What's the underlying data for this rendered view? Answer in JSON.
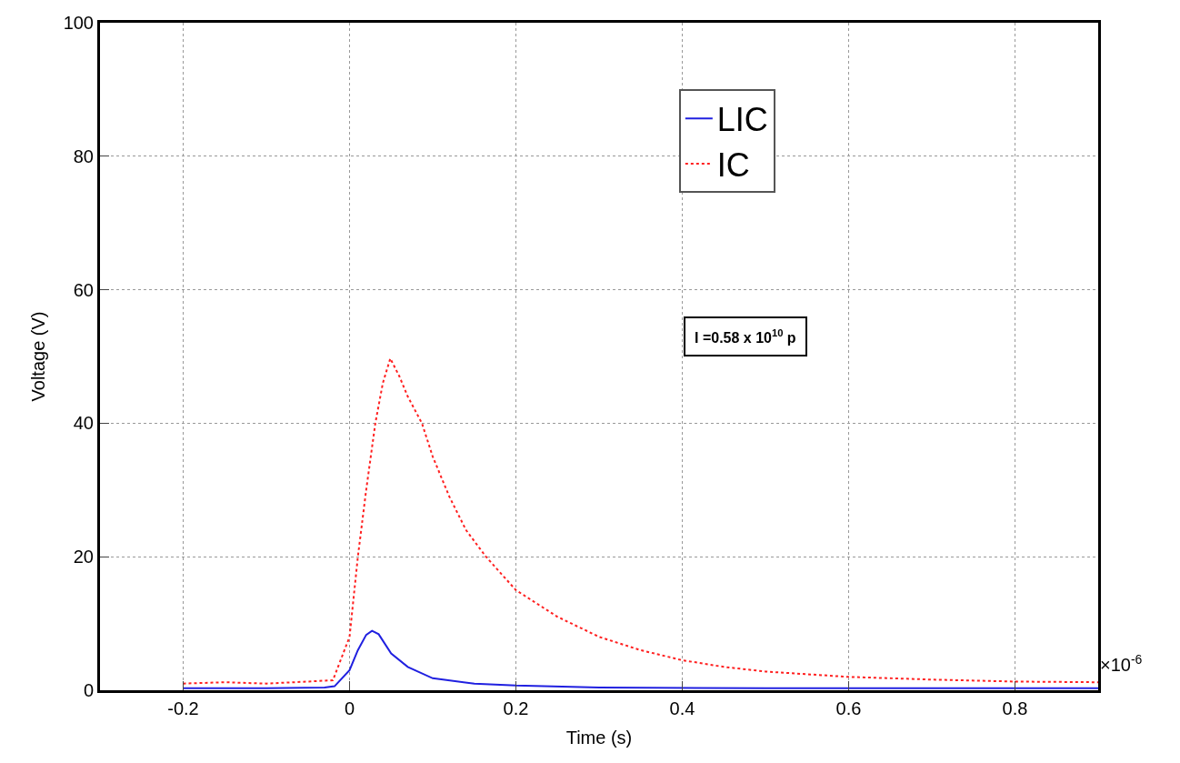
{
  "chart_data": {
    "type": "line",
    "xlabel": "Time (s)",
    "ylabel": "Voltage (V)",
    "xlim": [
      -0.3,
      0.9
    ],
    "xticks": [
      -0.2,
      0,
      0.2,
      0.4,
      0.6,
      0.8
    ],
    "ylim": [
      0,
      100
    ],
    "yticks": [
      0,
      20,
      40,
      60,
      80,
      100
    ],
    "grid": true,
    "legend": "top right",
    "marker": "none",
    "annotations": [
      "×10$^{-6}$",
      "I =0.58 x 10$^{10}$ p"
    ],
    "series": [
      {
        "name": "LIC",
        "color": "#2020e0",
        "line_style": "solid",
        "x": [
          -0.2,
          -0.1,
          -0.03,
          -0.018,
          0,
          0.01,
          0.02,
          0.027,
          0.035,
          0.05,
          0.07,
          0.1,
          0.15,
          0.2,
          0.3,
          0.5,
          0.9
        ],
        "values": [
          0.3,
          0.3,
          0.4,
          0.6,
          3,
          6,
          8.3,
          8.9,
          8.4,
          5.5,
          3.5,
          1.8,
          1.0,
          0.7,
          0.4,
          0.3,
          0.3
        ]
      },
      {
        "name": "IC",
        "color": "#ff2020",
        "line_style": "dotted",
        "x": [
          -0.2,
          -0.15,
          -0.1,
          -0.05,
          -0.02,
          0,
          0.01,
          0.02,
          0.031,
          0.04,
          0.049,
          0.06,
          0.07,
          0.087,
          0.1,
          0.12,
          0.14,
          0.164,
          0.2,
          0.25,
          0.3,
          0.35,
          0.4,
          0.45,
          0.5,
          0.6,
          0.7,
          0.8,
          0.9
        ],
        "values": [
          1.0,
          1.2,
          1.0,
          1.3,
          1.5,
          8,
          20,
          30,
          40,
          46,
          49.7,
          47,
          44,
          40,
          35,
          29,
          24,
          20,
          15,
          11,
          8,
          6,
          4.5,
          3.5,
          2.8,
          2.0,
          1.6,
          1.3,
          1.2
        ]
      }
    ]
  }
}
